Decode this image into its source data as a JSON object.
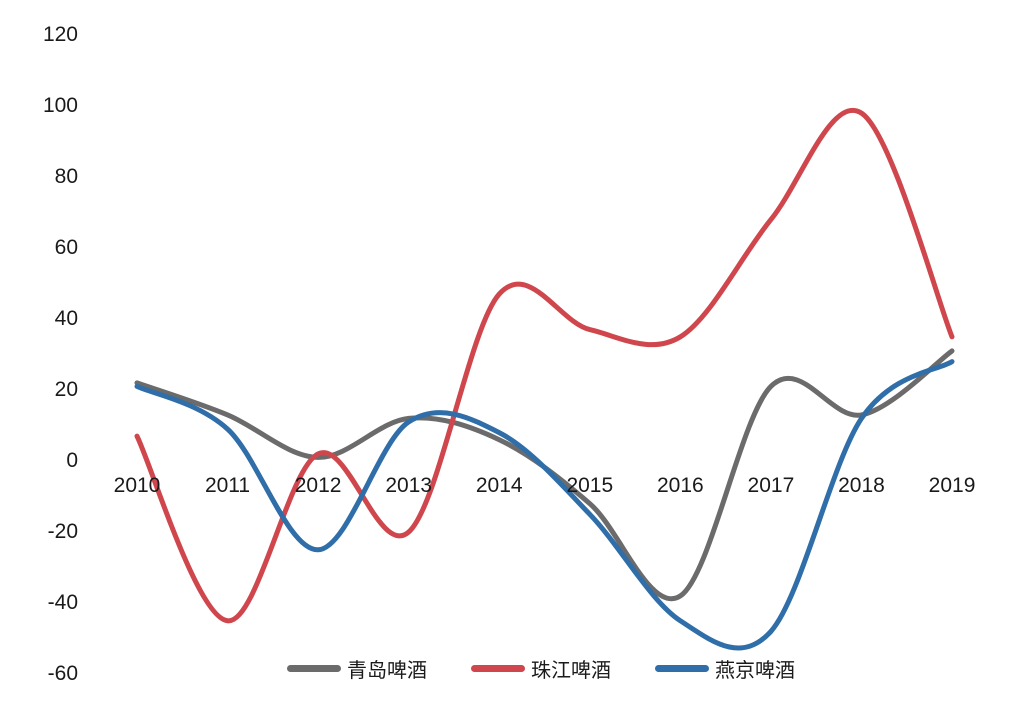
{
  "chart_data": {
    "type": "line",
    "smooth": true,
    "grid": false,
    "legend_position": "bottom",
    "categories": [
      "2010",
      "2011",
      "2012",
      "2013",
      "2014",
      "2015",
      "2016",
      "2017",
      "2018",
      "2019"
    ],
    "y_ticks": [
      "120",
      "100",
      "80",
      "60",
      "40",
      "20",
      "0",
      "-20",
      "-40",
      "-60"
    ],
    "ylim": [
      -60,
      120
    ],
    "series": [
      {
        "name": "青岛啤酒",
        "color": "#6b6b6b",
        "values": [
          22,
          13,
          1,
          12,
          6,
          -12,
          -38,
          21,
          13,
          31
        ]
      },
      {
        "name": "珠江啤酒",
        "color": "#cf474d",
        "values": [
          7,
          -45,
          2,
          -20,
          47,
          37,
          35,
          68,
          98,
          35
        ]
      },
      {
        "name": "燕京啤酒",
        "color": "#2f6ea8",
        "values": [
          21,
          9,
          -25,
          11,
          8,
          -15,
          -45,
          -48,
          12,
          28
        ]
      }
    ]
  }
}
